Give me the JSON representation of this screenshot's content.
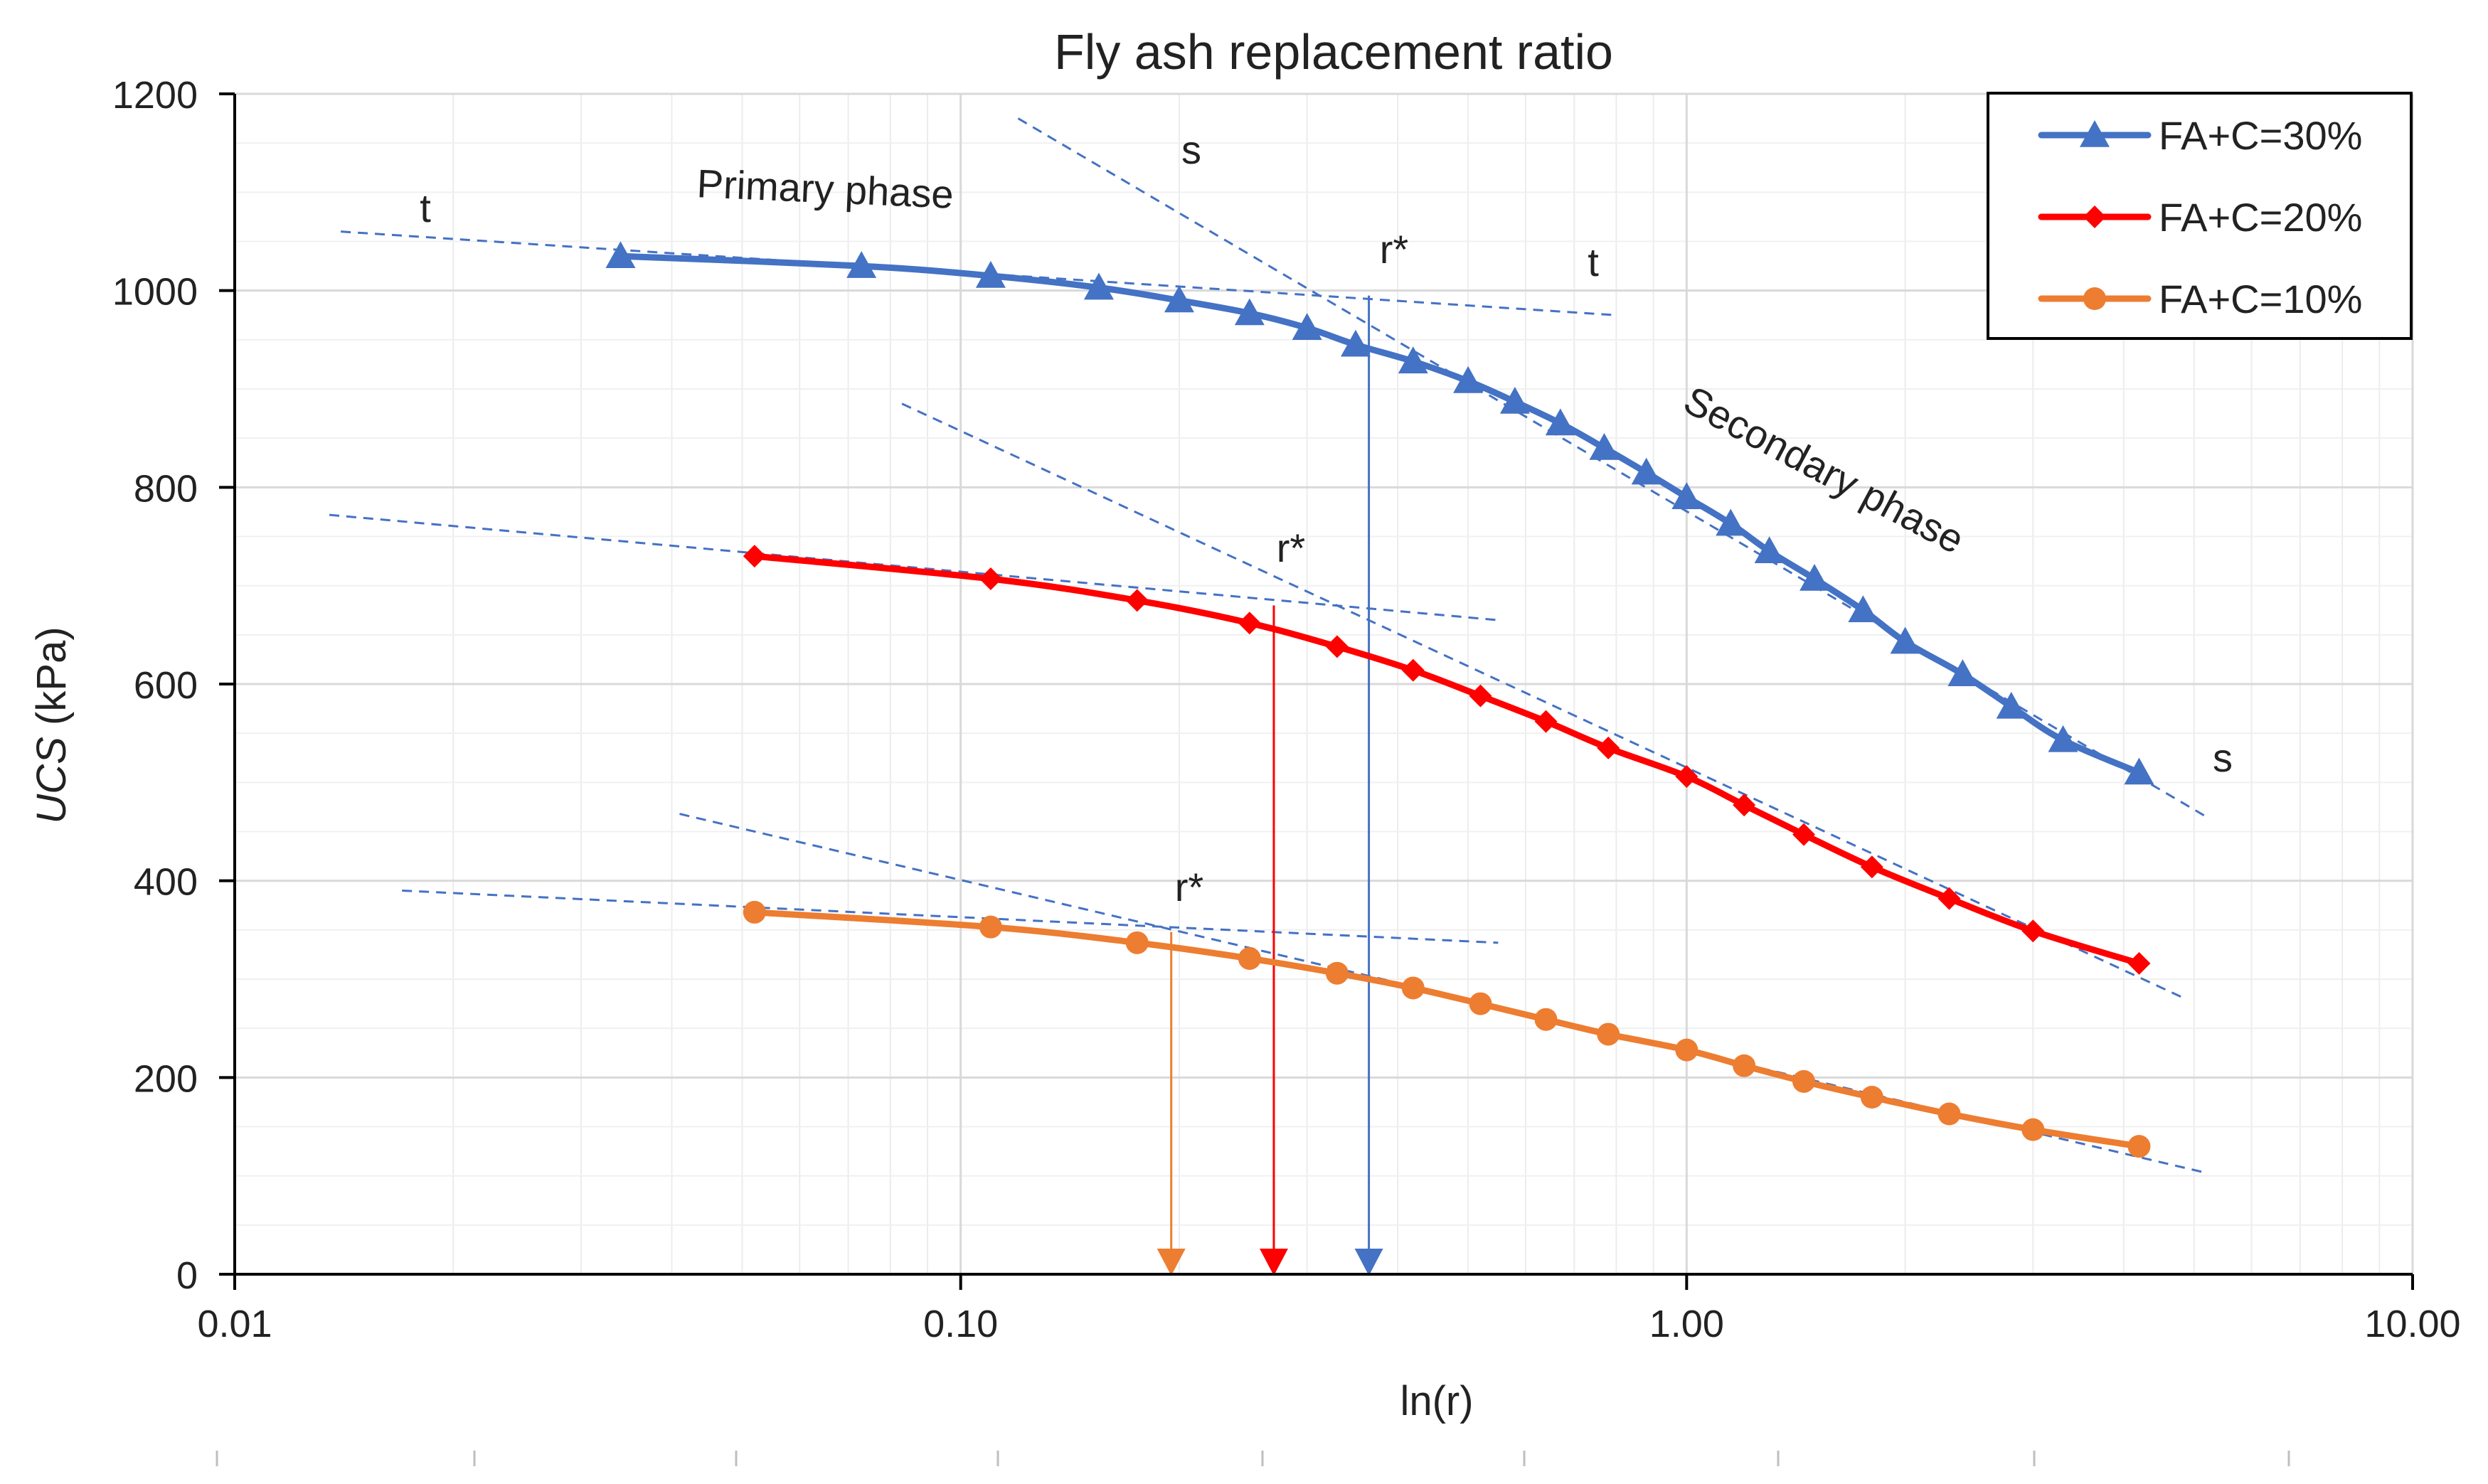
{
  "chart_data": {
    "type": "line",
    "title": "Fly ash replacement ratio",
    "xlabel": "ln(r)",
    "ylabel_italic": "UCS",
    "ylabel_unit": " (kPa)",
    "x_scale": "log",
    "xlim": [
      0.01,
      10
    ],
    "ylim": [
      0,
      1200
    ],
    "x_ticks": [
      0.01,
      0.1,
      1,
      10
    ],
    "x_tick_labels": [
      "0.01",
      "0.10",
      "1.00",
      "10.00"
    ],
    "y_ticks": [
      0,
      200,
      400,
      600,
      800,
      1000,
      1200
    ],
    "y_tick_labels": [
      "0",
      "200",
      "400",
      "600",
      "800",
      "1000",
      "1200"
    ],
    "grid": true,
    "legend_position": "top-right",
    "series": [
      {
        "name": "FA+C=30%",
        "color": "#4472C4",
        "marker": "triangle",
        "x": [
          0.034,
          0.073,
          0.11,
          0.155,
          0.2,
          0.25,
          0.3,
          0.35,
          0.42,
          0.5,
          0.58,
          0.67,
          0.77,
          0.88,
          1.0,
          1.15,
          1.3,
          1.5,
          1.75,
          2.0,
          2.4,
          2.8,
          3.3,
          4.2
        ],
        "values": [
          1035,
          1025,
          1015,
          1003,
          990,
          977,
          962,
          945,
          928,
          908,
          887,
          865,
          840,
          815,
          790,
          763,
          735,
          707,
          675,
          643,
          610,
          577,
          543,
          510
        ]
      },
      {
        "name": "FA+C=20%",
        "color": "#FF0000",
        "marker": "diamond",
        "x": [
          0.052,
          0.11,
          0.175,
          0.25,
          0.33,
          0.42,
          0.52,
          0.64,
          0.78,
          1.0,
          1.2,
          1.45,
          1.8,
          2.3,
          3.0,
          4.2
        ],
        "values": [
          730,
          707,
          685,
          662,
          638,
          614,
          588,
          562,
          535,
          506,
          477,
          447,
          414,
          382,
          349,
          316
        ]
      },
      {
        "name": "FA+C=10%",
        "color": "#ED7D31",
        "marker": "circle",
        "x": [
          0.052,
          0.11,
          0.175,
          0.25,
          0.33,
          0.42,
          0.52,
          0.64,
          0.78,
          1.0,
          1.2,
          1.45,
          1.8,
          2.3,
          3.0,
          4.2
        ],
        "values": [
          368,
          353,
          337,
          321,
          306,
          291,
          275,
          259,
          244,
          228,
          212,
          196,
          180,
          163,
          147,
          130
        ]
      }
    ],
    "tangent_lines": [
      {
        "name": "t-30",
        "x": [
          0.014,
          0.8
        ],
        "values": [
          1060,
          975
        ]
      },
      {
        "name": "s-30",
        "x": [
          0.12,
          5.2
        ],
        "values": [
          1175,
          465
        ]
      },
      {
        "name": "t-20",
        "x": [
          0.0135,
          0.55
        ],
        "values": [
          772,
          665
        ]
      },
      {
        "name": "s-20",
        "x": [
          0.083,
          4.8
        ],
        "values": [
          885,
          282
        ]
      },
      {
        "name": "t-10",
        "x": [
          0.017,
          0.55
        ],
        "values": [
          390,
          337
        ]
      },
      {
        "name": "s-10",
        "x": [
          0.041,
          5.2
        ],
        "values": [
          468,
          103
        ]
      }
    ],
    "r_star_markers": [
      {
        "name": "r-star-30",
        "x": 0.365,
        "y": 995,
        "color": "#4472C4"
      },
      {
        "name": "r-star-20",
        "x": 0.27,
        "y": 680,
        "color": "#FF0000"
      },
      {
        "name": "r-star-10",
        "x": 0.195,
        "y": 348,
        "color": "#ED7D31"
      }
    ],
    "annotations": {
      "t_1": "t",
      "s_1": "s",
      "primary_phase": "Primary phase",
      "r_star_30": "r*",
      "t_2": "t",
      "secondary_phase": "Secondary phase",
      "r_star_20": "r*",
      "s_2": "s",
      "r_star_10": "r*"
    }
  }
}
